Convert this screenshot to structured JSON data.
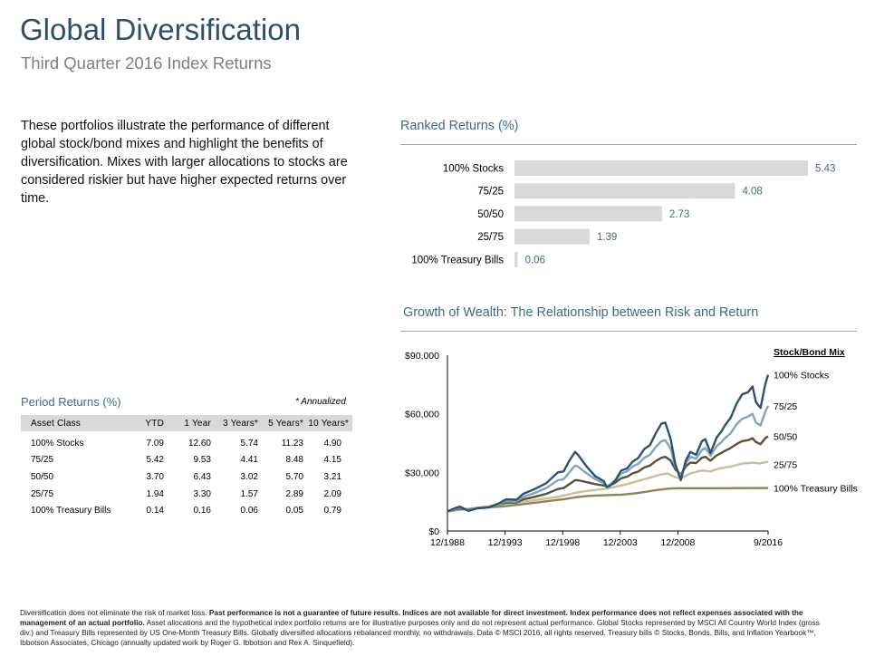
{
  "page": {
    "title": "Global Diversification",
    "subtitle": "Third Quarter 2016 Index Returns",
    "intro": "These portfolios illustrate the performance of different global stock/bond mixes and highlight the benefits of diversification. Mixes with larger allocations to stocks are considered riskier but have higher expected returns over time.",
    "disclaimer_normal_1": "Diversification does not eliminate the risk of market loss. ",
    "disclaimer_bold": "Past performance is not a guarantee of future results. Indices are not available for direct investment. Index performance does not reflect expenses associated with the management of an actual portfolio.",
    "disclaimer_normal_2": " Asset allocations and the hypothetical index portfolio returns are for illustrative purposes only and do not represent actual performance. Global Stocks represented by MSCI All Country World Index (gross div.) and Treasury Bills represented by US One-Month Treasury Bills. Globally diversified allocations rebalanced monthly, no withdrawals. Data © MSCI 2016, all rights reserved. Treasury bills © Stocks, Bonds, Bills, and Inflation Yearbook™, Ibbotson Associates, Chicago (annually updated work by Roger G. Ibbotson and Rex A. Sinquefield)."
  },
  "period_returns": {
    "title": "Period Returns (%)",
    "note": "* Annualized",
    "columns": [
      "Asset Class",
      "YTD",
      "1 Year",
      "3 Years*",
      "5 Years*",
      "10 Years*"
    ],
    "rows": [
      [
        "100% Stocks",
        "7.09",
        "12.60",
        "5.74",
        "11.23",
        "4.90"
      ],
      [
        "75/25",
        "5.42",
        "9.53",
        "4.41",
        "8.48",
        "4.15"
      ],
      [
        "50/50",
        "3.70",
        "6.43",
        "3.02",
        "5.70",
        "3.21"
      ],
      [
        "25/75",
        "1.94",
        "3.30",
        "1.57",
        "2.89",
        "2.09"
      ],
      [
        "100% Treasury Bills",
        "0.14",
        "0.16",
        "0.06",
        "0.05",
        "0.79"
      ]
    ]
  },
  "colors": {
    "bar": "#d9d9d9",
    "value_label": "#3f6a8a",
    "stocks100": "#2b5273",
    "mix75_25": "#7fa4c0",
    "mix50_50": "#5b5138",
    "mix25_75": "#c8bf98",
    "tbills": "#8d8654"
  },
  "chart_data": [
    {
      "type": "bar",
      "orientation": "horizontal",
      "title": "Ranked Returns (%)",
      "categories": [
        "100% Stocks",
        "75/25",
        "50/50",
        "25/75",
        "100% Treasury Bills"
      ],
      "values": [
        5.43,
        4.08,
        2.73,
        1.39,
        0.06
      ],
      "value_labels": [
        "5.43",
        "4.08",
        "2.73",
        "1.39",
        "0.06"
      ]
    },
    {
      "type": "line",
      "title": "Growth of Wealth: The Relationship between Risk and Return",
      "legend_title": "Stock/Bond Mix",
      "legend_position": "right",
      "x_range": [
        1988.92,
        2016.75
      ],
      "x_ticks": [
        {
          "label": "12/1988",
          "value": 1988.92
        },
        {
          "label": "12/1993",
          "value": 1993.92
        },
        {
          "label": "12/1998",
          "value": 1998.92
        },
        {
          "label": "12/2003",
          "value": 2003.92
        },
        {
          "label": "12/2008",
          "value": 2008.92
        },
        {
          "label": "9/2016",
          "value": 2016.75
        }
      ],
      "ylim": [
        0,
        90000
      ],
      "y_ticks": [
        {
          "label": "$0",
          "value": 0
        },
        {
          "label": "$30,000",
          "value": 30000
        },
        {
          "label": "$60,000",
          "value": 60000
        },
        {
          "label": "$90,000",
          "value": 90000
        }
      ],
      "series": [
        {
          "name": "100% Stocks",
          "color_key": "stocks100",
          "x": [
            1988.92,
            1989.5,
            1990.0,
            1990.75,
            1991.5,
            1992.5,
            1993.5,
            1994.0,
            1994.9,
            1995.5,
            1996.5,
            1997.5,
            1998.5,
            1999.0,
            1999.5,
            2000.0,
            2000.25,
            2001.0,
            2001.75,
            2002.5,
            2002.75,
            2003.0,
            2003.5,
            2004.0,
            2004.5,
            2005.0,
            2005.5,
            2006.0,
            2006.5,
            2007.0,
            2007.5,
            2007.83,
            2008.3,
            2008.7,
            2009.17,
            2009.6,
            2010.0,
            2010.5,
            2011.0,
            2011.3,
            2011.75,
            2012.3,
            2012.7,
            2013.0,
            2013.5,
            2014.0,
            2014.5,
            2015.0,
            2015.4,
            2015.7,
            2016.1,
            2016.5,
            2016.75
          ],
          "values": [
            10000,
            11500,
            12500,
            10300,
            11600,
            12000,
            14500,
            16200,
            16000,
            19000,
            21500,
            24500,
            30000,
            30500,
            36000,
            40500,
            39000,
            33000,
            28000,
            25500,
            22500,
            23000,
            26000,
            31000,
            32000,
            35500,
            37500,
            42000,
            44000,
            50000,
            55000,
            55500,
            47000,
            34000,
            26000,
            36000,
            40500,
            39000,
            46000,
            47000,
            40000,
            48000,
            51000,
            54000,
            58000,
            65000,
            70000,
            71000,
            74000,
            66000,
            63000,
            75000,
            80000
          ]
        },
        {
          "name": "75/25",
          "color_key": "mix75_25",
          "x": [
            1988.92,
            1989.5,
            1990.0,
            1990.75,
            1991.5,
            1992.5,
            1993.5,
            1994.0,
            1994.9,
            1995.5,
            1996.5,
            1997.5,
            1998.5,
            1999.0,
            1999.5,
            2000.0,
            2000.25,
            2001.0,
            2001.75,
            2002.5,
            2002.75,
            2003.0,
            2003.5,
            2004.0,
            2004.5,
            2005.0,
            2005.5,
            2006.0,
            2006.5,
            2007.0,
            2007.5,
            2007.83,
            2008.3,
            2008.7,
            2009.17,
            2009.6,
            2010.0,
            2010.5,
            2011.0,
            2011.3,
            2011.75,
            2012.3,
            2012.7,
            2013.0,
            2013.5,
            2014.0,
            2014.5,
            2015.0,
            2015.4,
            2015.7,
            2016.1,
            2016.5,
            2016.75
          ],
          "values": [
            10000,
            11200,
            12000,
            10800,
            11800,
            12500,
            14000,
            15200,
            15000,
            17500,
            19500,
            22000,
            26000,
            26500,
            30000,
            33500,
            33000,
            29500,
            26500,
            24500,
            23000,
            23500,
            26000,
            29500,
            30500,
            33000,
            34500,
            37500,
            39000,
            43000,
            46000,
            46500,
            42000,
            33000,
            28000,
            34500,
            38000,
            37000,
            41500,
            42500,
            38500,
            43500,
            45500,
            47500,
            50000,
            54500,
            57500,
            58500,
            60000,
            55500,
            54000,
            61000,
            64000
          ]
        },
        {
          "name": "50/50",
          "color_key": "mix50_50",
          "x": [
            1988.92,
            1989.5,
            1990.0,
            1990.75,
            1991.5,
            1992.5,
            1993.5,
            1994.0,
            1994.9,
            1995.5,
            1996.5,
            1997.5,
            1998.5,
            1999.0,
            1999.5,
            2000.0,
            2000.25,
            2001.0,
            2001.75,
            2002.5,
            2002.75,
            2003.0,
            2003.5,
            2004.0,
            2004.5,
            2005.0,
            2005.5,
            2006.0,
            2006.5,
            2007.0,
            2007.5,
            2007.83,
            2008.3,
            2008.7,
            2009.17,
            2009.6,
            2010.0,
            2010.5,
            2011.0,
            2011.3,
            2011.75,
            2012.3,
            2012.7,
            2013.0,
            2013.5,
            2014.0,
            2014.5,
            2015.0,
            2015.4,
            2015.7,
            2016.1,
            2016.5,
            2016.75
          ],
          "values": [
            10000,
            10900,
            11500,
            11000,
            11800,
            12500,
            13800,
            14500,
            14500,
            16200,
            17500,
            19000,
            21500,
            22000,
            24000,
            26000,
            26000,
            25000,
            24000,
            23300,
            22800,
            23300,
            24800,
            27000,
            27800,
            29500,
            30500,
            32500,
            33500,
            35800,
            37500,
            38000,
            36000,
            31500,
            29000,
            33000,
            35000,
            34800,
            37500,
            38000,
            36000,
            38800,
            40000,
            41000,
            42500,
            44500,
            46000,
            46500,
            47500,
            45500,
            44500,
            47500,
            48500
          ]
        },
        {
          "name": "25/75",
          "color_key": "mix25_75",
          "x": [
            1988.92,
            1990.0,
            1991.0,
            1992.5,
            1994.0,
            1995.5,
            1997.0,
            1998.5,
            2000.0,
            2001.0,
            2002.5,
            2003.0,
            2004.5,
            2006.0,
            2007.5,
            2008.0,
            2008.7,
            2009.2,
            2010.0,
            2011.0,
            2011.75,
            2012.5,
            2013.5,
            2014.5,
            2015.5,
            2016.0,
            2016.75
          ],
          "values": [
            10000,
            11000,
            11500,
            12500,
            14000,
            15000,
            16200,
            17500,
            19500,
            20500,
            21500,
            22000,
            24000,
            26500,
            29000,
            29500,
            27500,
            27000,
            29500,
            31000,
            30500,
            32000,
            33000,
            34500,
            35000,
            34500,
            35500
          ]
        },
        {
          "name": "100% Treasury Bills",
          "color_key": "tbills",
          "x": [
            1988.92,
            1990.0,
            1991.0,
            1992.0,
            1993.0,
            1994.0,
            1995.0,
            1996.0,
            1997.0,
            1998.0,
            1999.0,
            2000.0,
            2001.0,
            2002.0,
            2003.0,
            2004.0,
            2005.0,
            2006.0,
            2007.0,
            2008.0,
            2008.5,
            2009.0,
            2012.0,
            2016.75
          ],
          "values": [
            10000,
            10800,
            11500,
            12000,
            12300,
            12700,
            13400,
            14100,
            14800,
            15600,
            16300,
            17200,
            17900,
            18200,
            18400,
            18600,
            19100,
            19900,
            20900,
            21600,
            21800,
            21900,
            21900,
            22000
          ]
        }
      ]
    }
  ]
}
